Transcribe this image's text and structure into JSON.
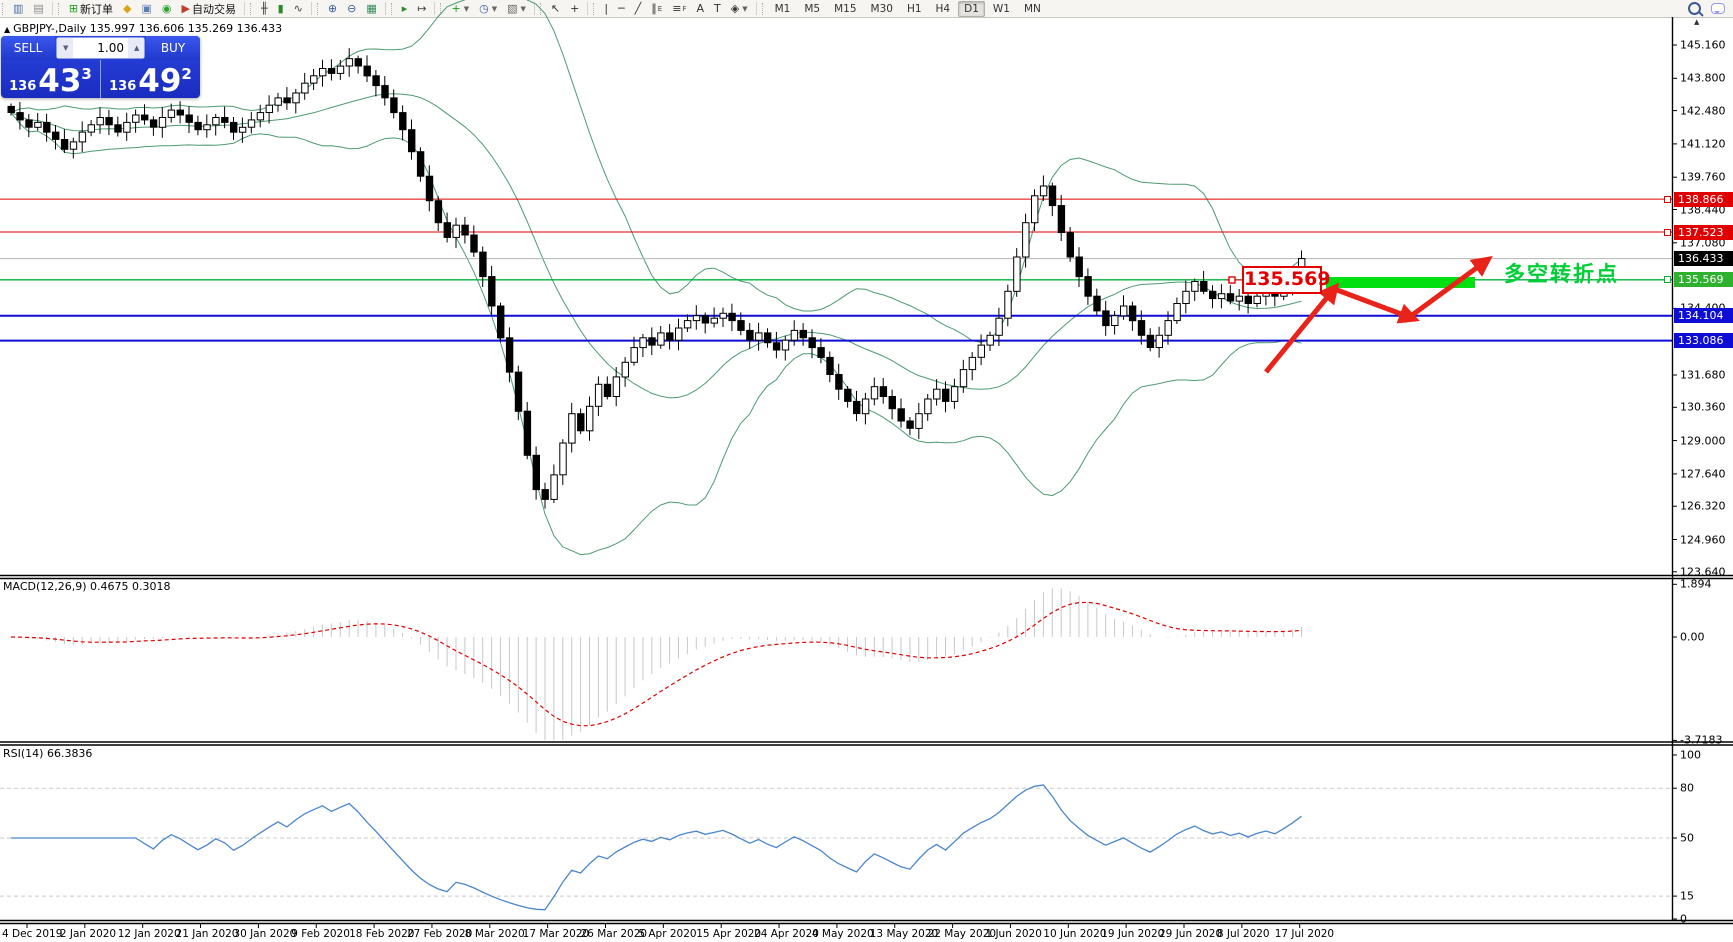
{
  "chart_header": {
    "symbol": "GBPJPY-,Daily",
    "ohlc": "135.997 136.606 135.269 136.433"
  },
  "toolbar": {
    "groups": [
      {
        "items": [
          {
            "name": "new-chart-icon",
            "glyph": "▥",
            "color": "#4a6fa5"
          },
          {
            "name": "profiles-icon",
            "glyph": "▤",
            "color": "#8a8a8a"
          }
        ]
      },
      {
        "items": [
          {
            "name": "new-order-icon",
            "glyph": "⊞",
            "color": "#1d9e1d",
            "label": "新订单"
          },
          {
            "name": "metaeditor-icon",
            "glyph": "◆",
            "color": "#d8a517"
          },
          {
            "name": "terminal-icon",
            "glyph": "▣",
            "color": "#5a7fb5"
          },
          {
            "name": "signals-icon",
            "glyph": "◉",
            "color": "#2ca02c"
          },
          {
            "name": "autotrading-icon",
            "glyph": "▶",
            "color": "#c43b2a",
            "label": "自动交易"
          }
        ]
      },
      {
        "items": [
          {
            "name": "bar-chart-icon",
            "glyph": "╫",
            "color": "#444444"
          },
          {
            "name": "candlestick-icon",
            "glyph": "▮",
            "color": "#2c8a2c"
          },
          {
            "name": "line-chart-icon",
            "glyph": "∿",
            "color": "#444444"
          }
        ]
      },
      {
        "items": [
          {
            "name": "zoom-in-icon",
            "glyph": "⊕",
            "color": "#3a5fa0"
          },
          {
            "name": "zoom-out-icon",
            "glyph": "⊖",
            "color": "#3a5fa0"
          },
          {
            "name": "tile-windows-icon",
            "glyph": "▦",
            "color": "#2c8a5a"
          }
        ]
      },
      {
        "items": [
          {
            "name": "auto-scroll-icon",
            "glyph": "▸",
            "color": "#2c8a2c"
          },
          {
            "name": "chart-shift-icon",
            "glyph": "↦",
            "color": "#444444"
          }
        ]
      },
      {
        "items": [
          {
            "name": "indicators-icon",
            "glyph": "+",
            "color": "#1d9e1d",
            "dropdown": true
          },
          {
            "name": "periods-icon",
            "glyph": "◷",
            "color": "#3a5fa0",
            "dropdown": true
          },
          {
            "name": "templates-icon",
            "glyph": "▧",
            "color": "#666666",
            "dropdown": true
          }
        ]
      },
      {
        "items": [
          {
            "name": "cursor-icon",
            "glyph": "↖",
            "color": "#333333"
          },
          {
            "name": "crosshair-icon",
            "glyph": "+",
            "color": "#333333"
          }
        ]
      },
      {
        "items": [
          {
            "name": "vertical-line-icon",
            "glyph": "|",
            "color": "#333333"
          },
          {
            "name": "horizontal-line-icon",
            "glyph": "─",
            "color": "#333333"
          },
          {
            "name": "trendline-icon",
            "glyph": "╱",
            "color": "#333333"
          },
          {
            "name": "channel-icon",
            "glyph": "∥",
            "sub": "E",
            "color": "#333333"
          },
          {
            "name": "fibonacci-icon",
            "glyph": "≡",
            "sub": "F",
            "color": "#333333"
          },
          {
            "name": "text-icon",
            "glyph": "A",
            "color": "#333333"
          },
          {
            "name": "text-label-icon",
            "glyph": "T",
            "color": "#333333"
          },
          {
            "name": "shapes-icon",
            "glyph": "◈",
            "color": "#333333",
            "dropdown": true
          }
        ]
      }
    ],
    "timeframes": [
      "M1",
      "M5",
      "M15",
      "M30",
      "H1",
      "H4",
      "D1",
      "W1",
      "MN"
    ],
    "active_timeframe": "D1"
  },
  "trade_panel": {
    "sell_label": "SELL",
    "buy_label": "BUY",
    "volume": "1.00",
    "vol_down_glyph": "▼",
    "vol_up_glyph": "▲",
    "sell_small": "136",
    "sell_big": "43",
    "sell_sup": "3",
    "buy_small": "136",
    "buy_big": "49",
    "buy_sup": "2"
  },
  "price_axis": {
    "ticks": [
      "145.160",
      "143.800",
      "142.480",
      "141.120",
      "139.760",
      "138.440",
      "137.080",
      "134.400",
      "131.680",
      "130.360",
      "129.000",
      "127.640",
      "126.320",
      "124.960",
      "123.640"
    ],
    "badges": [
      {
        "value": "138.866",
        "type": "red"
      },
      {
        "value": "137.523",
        "type": "red"
      },
      {
        "value": "136.433",
        "type": "black"
      },
      {
        "value": "135.569",
        "type": "green"
      },
      {
        "value": "134.104",
        "type": "blue"
      },
      {
        "value": "133.086",
        "type": "blue"
      }
    ]
  },
  "hlines": [
    {
      "price": 138.866,
      "color": "#e00000",
      "w": 1
    },
    {
      "price": 137.523,
      "color": "#e00000",
      "w": 1
    },
    {
      "price": 136.433,
      "color": "#b4b4b4",
      "w": 1
    },
    {
      "price": 135.569,
      "color": "#00b33c",
      "w": 1.4
    },
    {
      "price": 134.104,
      "color": "#0d0dd6",
      "w": 2
    },
    {
      "price": 133.086,
      "color": "#0d0dd6",
      "w": 2
    }
  ],
  "macd_panel": {
    "label": "MACD(12,26,9) 0.4675 0.3018",
    "axis_labels": [
      {
        "text": "1.894",
        "value": 1.894
      },
      {
        "text": "0.00",
        "value": 0
      },
      {
        "text": "-3.7183",
        "value": -3.7183
      }
    ],
    "settings": {
      "fast": 12,
      "slow": 26,
      "signal": 9
    }
  },
  "rsi_panel": {
    "label": "RSI(14) 66.3836",
    "axis_labels": [
      {
        "text": "100",
        "value": 100
      },
      {
        "text": "80",
        "value": 80
      },
      {
        "text": "50",
        "value": 50
      },
      {
        "text": "15",
        "value": 15
      },
      {
        "text": "0",
        "value": 0
      }
    ],
    "grid_levels": [
      80,
      50,
      15
    ],
    "period": 14
  },
  "annotation": {
    "price_box": "135.569",
    "text": "多空转折点"
  },
  "dates": [
    "4 Dec 2019",
    "2 Jan 2020",
    "12 Jan 2020",
    "21 Jan 2020",
    "30 Jan 2020",
    "9 Feb 2020",
    "18 Feb 2020",
    "27 Feb 2020",
    "8 Mar 2020",
    "17 Mar 2020",
    "26 Mar 2020",
    "5 Apr 2020",
    "15 Apr 2020",
    "24 Apr 2020",
    "4 May 2020",
    "13 May 2020",
    "22 May 2020",
    "1 Jun 2020",
    "10 Jun 2020",
    "19 Jun 2020",
    "29 Jun 2020",
    "8 Jul 2020",
    "17 Jul 2020"
  ],
  "colors": {
    "band_green": "#4d9a72",
    "hist_gray": "#c8c8c8",
    "macd_signal": "#e00000",
    "rsi_blue": "#4a86cc",
    "arrow_red": "#e8241a",
    "rect_green": "#00e010",
    "candle_up": "#ffffff",
    "candle_down": "#000000",
    "grid_dash": "#c8c8c8"
  },
  "chart": {
    "bollinger": {
      "period": 20,
      "deviation": 2
    },
    "closes": [
      142.4,
      142.1,
      141.8,
      142.0,
      141.6,
      141.3,
      140.9,
      141.2,
      141.6,
      141.9,
      142.2,
      141.9,
      141.6,
      142.0,
      142.3,
      142.1,
      141.8,
      142.2,
      142.5,
      142.3,
      142.0,
      141.7,
      141.9,
      142.2,
      142.0,
      141.6,
      141.8,
      142.1,
      142.4,
      142.7,
      143.0,
      142.8,
      143.2,
      143.6,
      143.9,
      144.2,
      144.0,
      144.3,
      144.6,
      144.3,
      143.9,
      143.5,
      143.0,
      142.4,
      141.7,
      140.8,
      139.8,
      138.8,
      137.9,
      137.3,
      137.8,
      137.4,
      136.7,
      135.7,
      134.5,
      133.2,
      131.8,
      130.2,
      128.4,
      127.0,
      126.6,
      127.6,
      128.9,
      130.1,
      129.4,
      130.4,
      131.3,
      130.8,
      131.6,
      132.2,
      132.8,
      133.2,
      132.9,
      133.4,
      133.1,
      133.6,
      133.9,
      134.1,
      133.8,
      134.0,
      134.2,
      133.9,
      133.5,
      133.1,
      133.4,
      133.0,
      132.7,
      133.1,
      133.5,
      133.2,
      132.8,
      132.4,
      131.7,
      131.1,
      130.6,
      130.1,
      130.7,
      131.2,
      130.8,
      130.3,
      129.8,
      129.5,
      130.1,
      130.7,
      131.1,
      130.6,
      131.2,
      131.9,
      132.4,
      132.9,
      133.3,
      134.0,
      135.1,
      136.5,
      137.9,
      139.0,
      139.4,
      138.6,
      137.5,
      136.5,
      135.7,
      134.9,
      134.3,
      133.7,
      134.1,
      134.5,
      133.9,
      133.3,
      132.8,
      133.3,
      133.9,
      134.6,
      135.1,
      135.5,
      135.1,
      134.8,
      135.0,
      134.7,
      134.9,
      134.6,
      134.9,
      135.1,
      134.9,
      135.3,
      135.8,
      136.433
    ]
  }
}
